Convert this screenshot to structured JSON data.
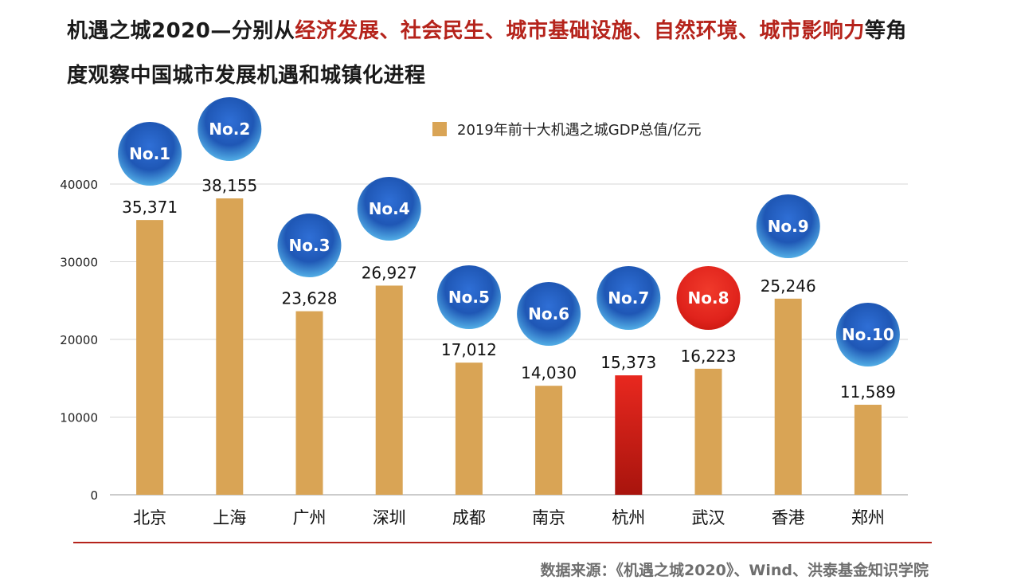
{
  "header": {
    "line1": [
      {
        "text": "机遇之城2020—分别从",
        "highlight": false
      },
      {
        "text": "经济发展、社会民生、城市基础设施、自然环境、城市影响力",
        "highlight": true
      },
      {
        "text": "等角",
        "highlight": false
      }
    ],
    "line2": "度观察中国城市发展机遇和城镇化进程"
  },
  "source": "数据来源：《机遇之城2020》、Wind、洪泰基金知识学院",
  "colors": {
    "bar": "#d9a455",
    "bar_highlight": "#c01e17",
    "title_highlight": "#b5231b",
    "badge_blue": "#1f57b5",
    "badge_red": "#e0231c",
    "baseline": "#b5231b"
  },
  "chart_data": {
    "type": "bar",
    "legend": "2019年前十大机遇之城GDP总值/亿元",
    "legend_position": "top-center",
    "categories": [
      "北京",
      "上海",
      "广州",
      "深圳",
      "成都",
      "南京",
      "杭州",
      "武汉",
      "香港",
      "郑州"
    ],
    "values": [
      35371,
      38155,
      23628,
      26927,
      17012,
      14030,
      15373,
      16223,
      25246,
      11589
    ],
    "value_labels": [
      "35,371",
      "38,155",
      "23,628",
      "26,927",
      "17,012",
      "14,030",
      "15,373",
      "16,223",
      "25,246",
      "11,589"
    ],
    "ranks": [
      "No.1",
      "No.2",
      "No.3",
      "No.4",
      "No.5",
      "No.6",
      "No.7",
      "No.8",
      "No.9",
      "No.10"
    ],
    "highlighted_bar": "杭州",
    "highlighted_rank": "No.8",
    "yticks": [
      0,
      10000,
      20000,
      30000,
      40000
    ],
    "ylim": [
      0,
      40000
    ],
    "grid": true,
    "xlabel": "",
    "ylabel": ""
  }
}
